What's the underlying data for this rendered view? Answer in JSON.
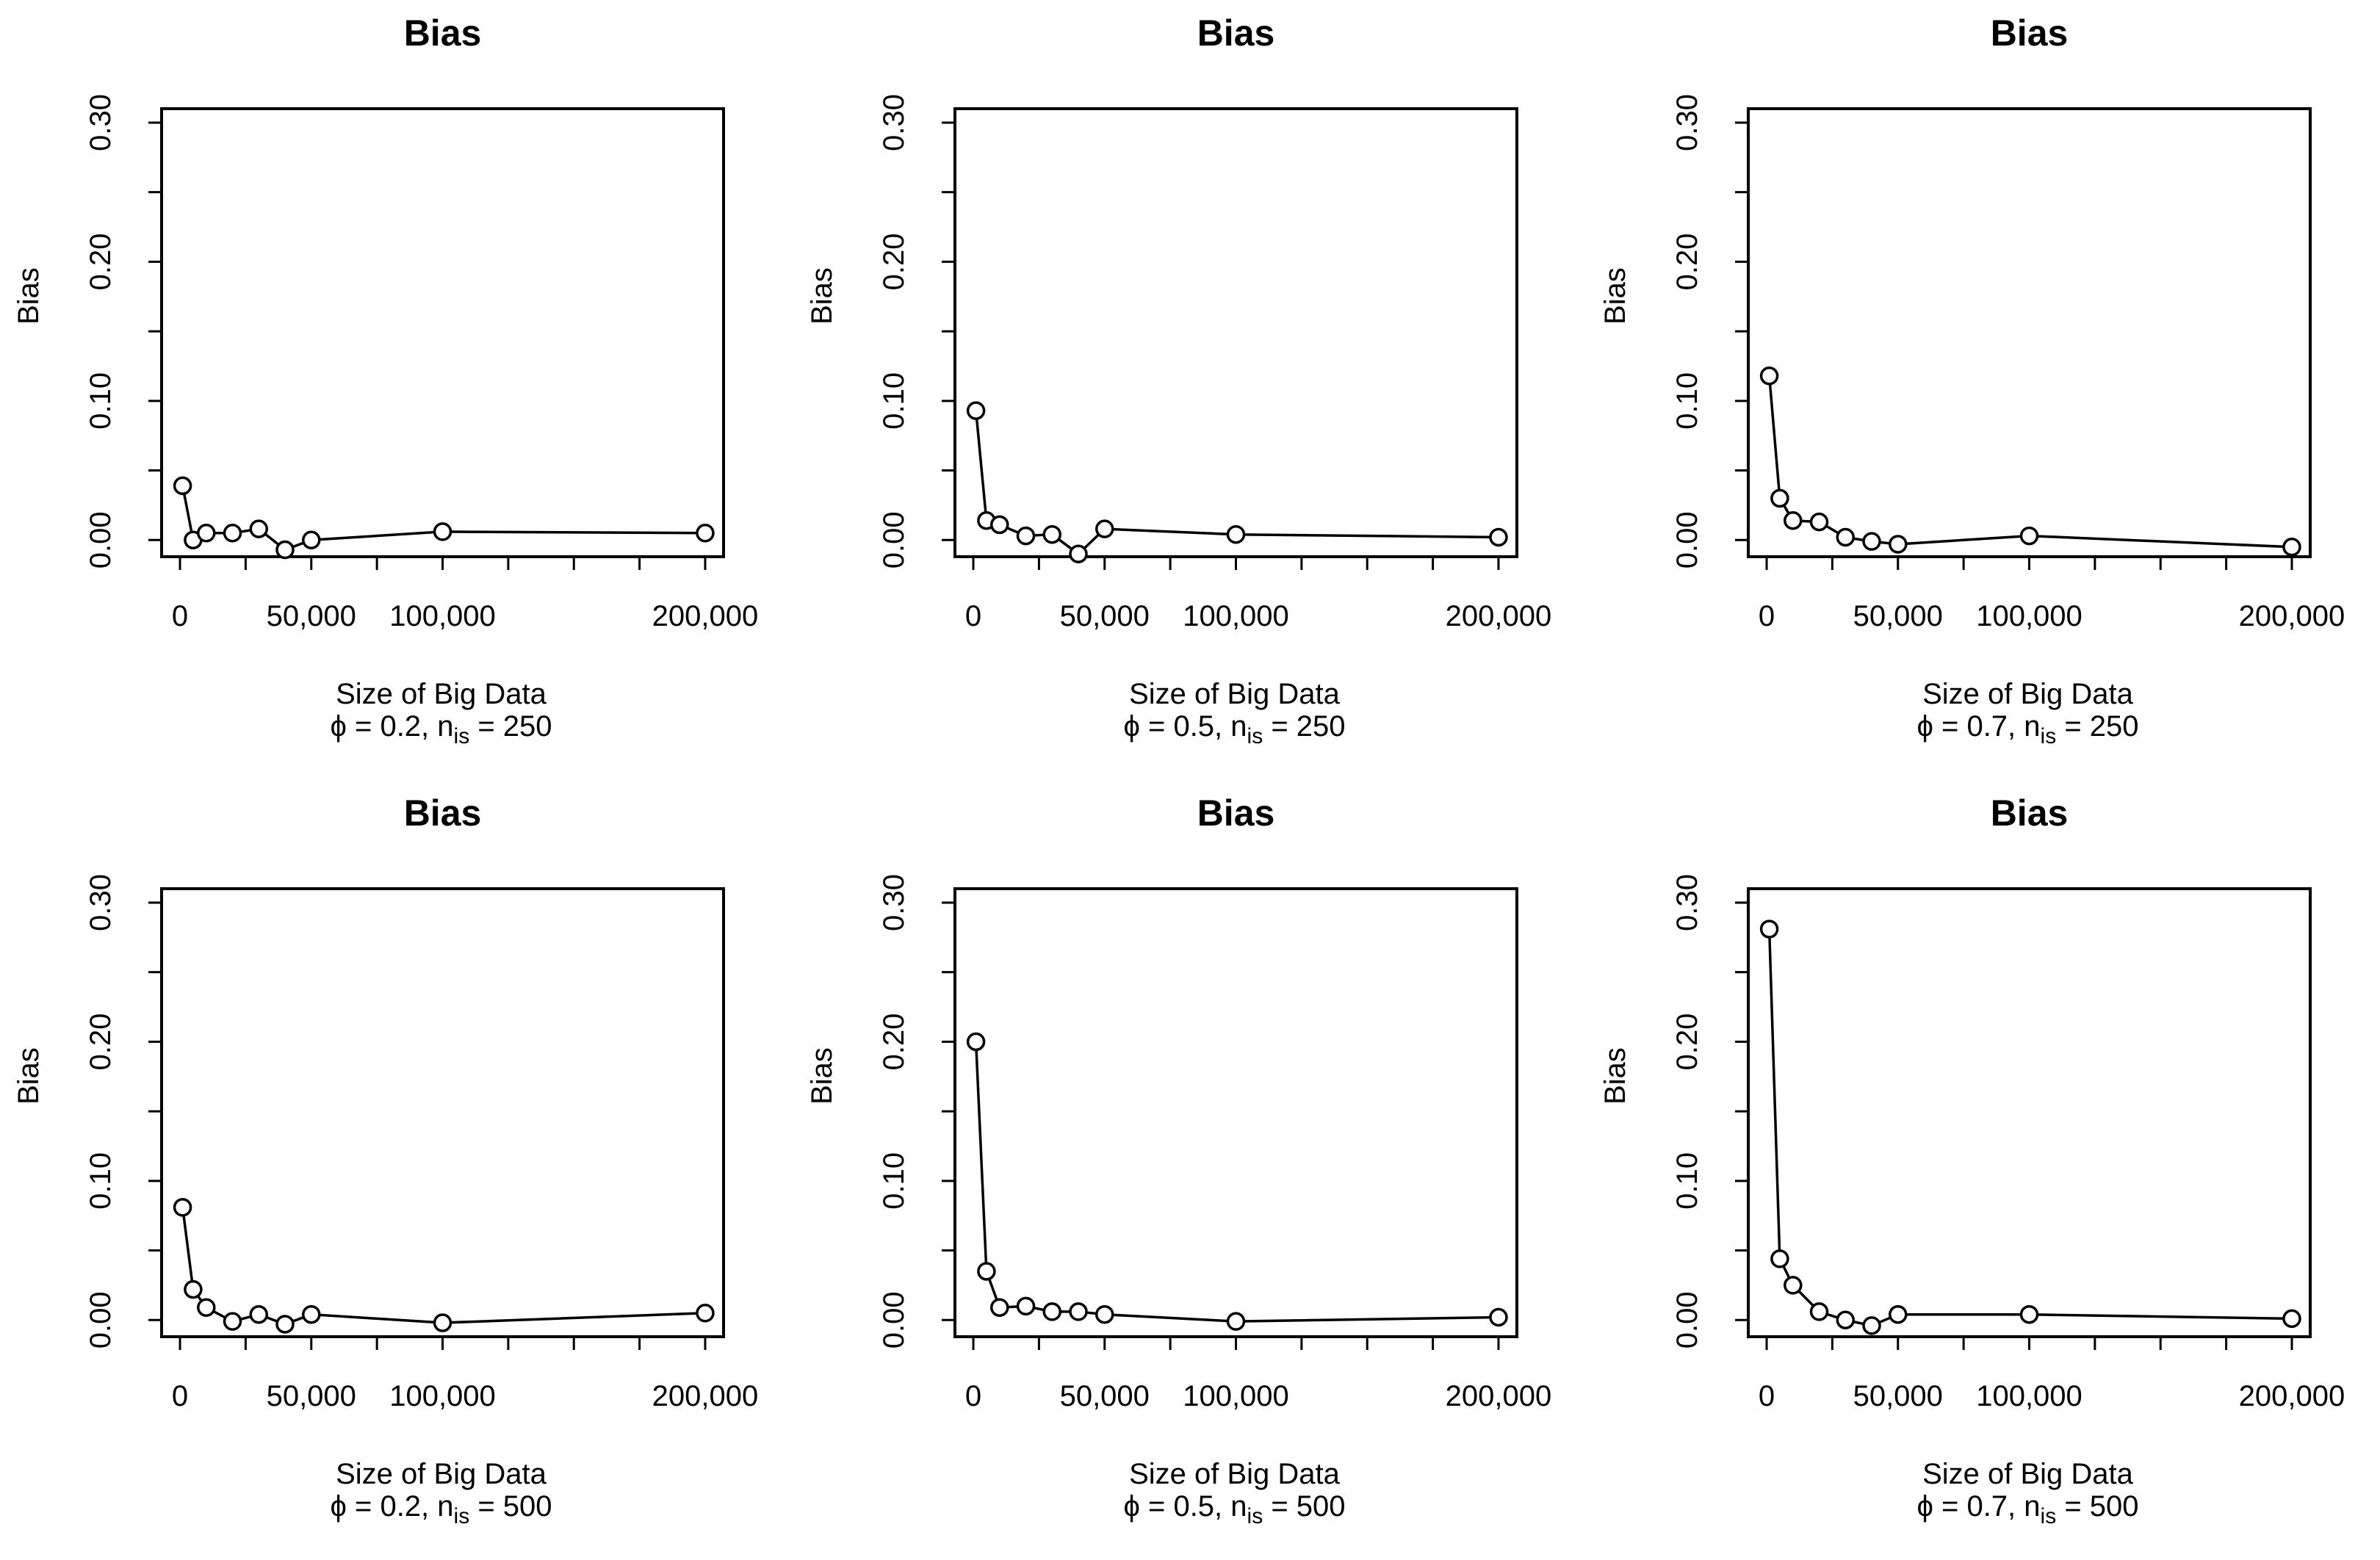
{
  "chart_data": [
    {
      "type": "line",
      "title": "Bias",
      "xlabel": "Size of Big Data",
      "ylabel": "Bias",
      "subtitle": {
        "phi": "0.2",
        "n_is": "250",
        "prefix": "ϕ = 0.2, n",
        "sub": "is",
        "suffix": " = 250"
      },
      "x": [
        1000,
        5000,
        10000,
        20000,
        30000,
        40000,
        50000,
        100000,
        200000
      ],
      "y": [
        0.039,
        0.0,
        0.005,
        0.005,
        0.008,
        -0.007,
        0.0,
        0.006,
        0.005
      ],
      "xticks": [
        0,
        50000,
        100000,
        150000,
        200000
      ],
      "xtick_labels": [
        "0",
        "50,000",
        "100,000",
        "",
        "200,000"
      ],
      "yticks": [
        0.0,
        0.1,
        0.2,
        0.3
      ],
      "ytick_labels": [
        "0.00",
        "0.10",
        "0.20",
        "0.30"
      ],
      "ylim": [
        -0.012,
        0.31
      ],
      "xlim": [
        -7000,
        207000
      ]
    },
    {
      "type": "line",
      "title": "Bias",
      "xlabel": "Size of Big Data",
      "ylabel": "Bias",
      "subtitle": {
        "phi": "0.5",
        "n_is": "250",
        "prefix": "ϕ = 0.5, n",
        "sub": "is",
        "suffix": " = 250"
      },
      "x": [
        1000,
        5000,
        10000,
        20000,
        30000,
        40000,
        50000,
        100000,
        200000
      ],
      "y": [
        0.093,
        0.014,
        0.011,
        0.003,
        0.004,
        -0.01,
        0.008,
        0.004,
        0.002
      ],
      "xticks": [
        0,
        50000,
        100000,
        150000,
        200000
      ],
      "xtick_labels": [
        "0",
        "50,000",
        "100,000",
        "",
        "200,000"
      ],
      "yticks": [
        0.0,
        0.1,
        0.2,
        0.3
      ],
      "ytick_labels": [
        "0.00",
        "0.10",
        "0.20",
        "0.30"
      ],
      "ylim": [
        -0.012,
        0.31
      ],
      "xlim": [
        -7000,
        207000
      ]
    },
    {
      "type": "line",
      "title": "Bias",
      "xlabel": "Size of Big Data",
      "ylabel": "Bias",
      "subtitle": {
        "phi": "0.7",
        "n_is": "250",
        "prefix": "ϕ = 0.7, n",
        "sub": "is",
        "suffix": " = 250"
      },
      "x": [
        1000,
        5000,
        10000,
        20000,
        30000,
        40000,
        50000,
        100000,
        200000
      ],
      "y": [
        0.118,
        0.03,
        0.014,
        0.013,
        0.002,
        -0.001,
        -0.003,
        0.003,
        -0.005
      ],
      "xticks": [
        0,
        50000,
        100000,
        150000,
        200000
      ],
      "xtick_labels": [
        "0",
        "50,000",
        "100,000",
        "",
        "200,000"
      ],
      "yticks": [
        0.0,
        0.1,
        0.2,
        0.3
      ],
      "ytick_labels": [
        "0.00",
        "0.10",
        "0.20",
        "0.30"
      ],
      "ylim": [
        -0.012,
        0.31
      ],
      "xlim": [
        -7000,
        207000
      ]
    },
    {
      "type": "line",
      "title": "Bias",
      "xlabel": "Size of Big Data",
      "ylabel": "Bias",
      "subtitle": {
        "phi": "0.2",
        "n_is": "500",
        "prefix": "ϕ = 0.2, n",
        "sub": "is",
        "suffix": " = 500"
      },
      "x": [
        1000,
        5000,
        10000,
        20000,
        30000,
        40000,
        50000,
        100000,
        200000
      ],
      "y": [
        0.081,
        0.022,
        0.009,
        -0.001,
        0.004,
        -0.003,
        0.004,
        -0.002,
        0.005
      ],
      "xticks": [
        0,
        50000,
        100000,
        150000,
        200000
      ],
      "xtick_labels": [
        "0",
        "50,000",
        "100,000",
        "",
        "200,000"
      ],
      "yticks": [
        0.0,
        0.1,
        0.2,
        0.3
      ],
      "ytick_labels": [
        "0.00",
        "0.10",
        "0.20",
        "0.30"
      ],
      "ylim": [
        -0.012,
        0.31
      ],
      "xlim": [
        -7000,
        207000
      ]
    },
    {
      "type": "line",
      "title": "Bias",
      "xlabel": "Size of Big Data",
      "ylabel": "Bias",
      "subtitle": {
        "phi": "0.5",
        "n_is": "500",
        "prefix": "ϕ = 0.5, n",
        "sub": "is",
        "suffix": " = 500"
      },
      "x": [
        1000,
        5000,
        10000,
        20000,
        30000,
        40000,
        50000,
        100000,
        200000
      ],
      "y": [
        0.2,
        0.035,
        0.009,
        0.01,
        0.006,
        0.006,
        0.004,
        -0.001,
        0.002
      ],
      "xticks": [
        0,
        50000,
        100000,
        150000,
        200000
      ],
      "xtick_labels": [
        "0",
        "50,000",
        "100,000",
        "",
        "200,000"
      ],
      "yticks": [
        0.0,
        0.1,
        0.2,
        0.3
      ],
      "ytick_labels": [
        "0.00",
        "0.10",
        "0.20",
        "0.30"
      ],
      "ylim": [
        -0.012,
        0.31
      ],
      "xlim": [
        -7000,
        207000
      ]
    },
    {
      "type": "line",
      "title": "Bias",
      "xlabel": "Size of Big Data",
      "ylabel": "Bias",
      "subtitle": {
        "phi": "0.7",
        "n_is": "500",
        "prefix": "ϕ = 0.7, n",
        "sub": "is",
        "suffix": " = 500"
      },
      "x": [
        1000,
        5000,
        10000,
        20000,
        30000,
        40000,
        50000,
        100000,
        200000
      ],
      "y": [
        0.281,
        0.044,
        0.025,
        0.006,
        0.0,
        -0.004,
        0.004,
        0.004,
        0.001
      ],
      "xticks": [
        0,
        50000,
        100000,
        150000,
        200000
      ],
      "xtick_labels": [
        "0",
        "50,000",
        "100,000",
        "",
        "200,000"
      ],
      "yticks": [
        0.0,
        0.1,
        0.2,
        0.3
      ],
      "ytick_labels": [
        "0.00",
        "0.10",
        "0.20",
        "0.30"
      ],
      "ylim": [
        -0.012,
        0.31
      ],
      "xlim": [
        -7000,
        207000
      ]
    }
  ]
}
